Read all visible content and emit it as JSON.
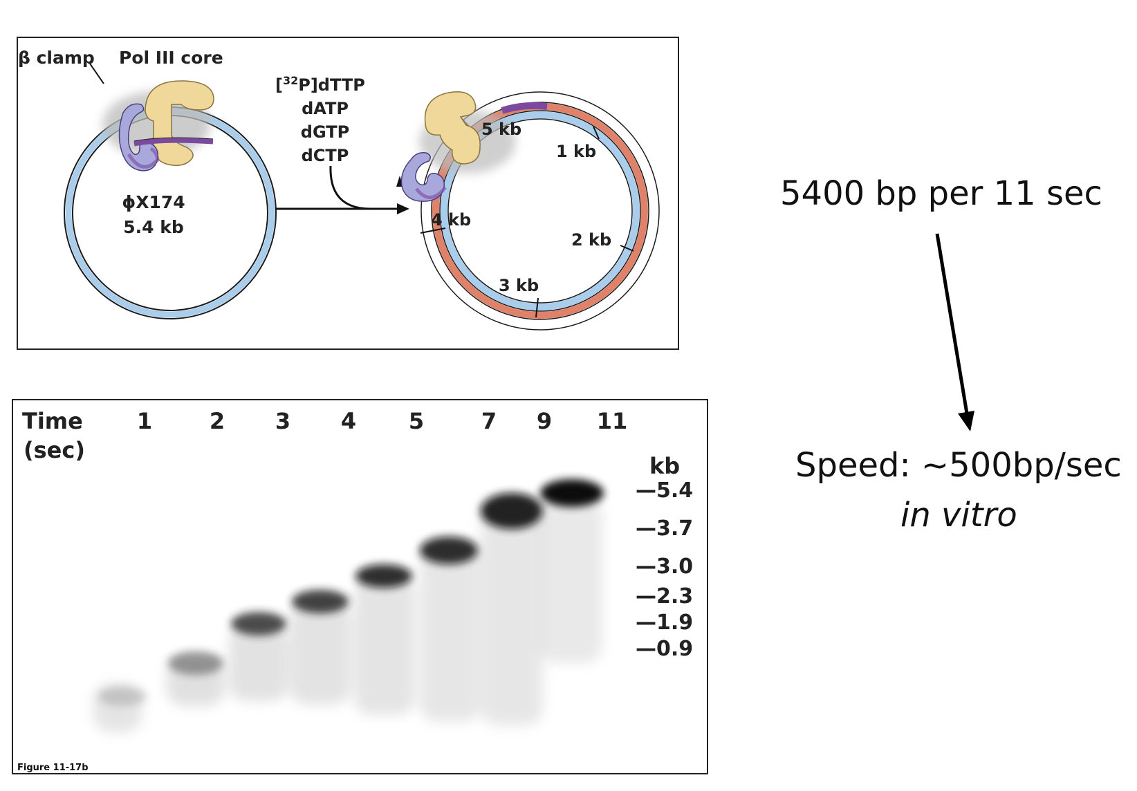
{
  "diagram": {
    "beta_clamp_label": "β clamp",
    "pol_label": "Pol III core",
    "phage_name": "ϕX174",
    "phage_size": "5.4 kb",
    "nucleotides": {
      "dttp_sup": "32",
      "dttp_rest": "P]dTTP",
      "datp": "dATP",
      "dgtp": "dGTP",
      "dctp": "dCTP"
    },
    "kb_marks": [
      "1 kb",
      "2 kb",
      "3 kb",
      "4 kb",
      "5 kb"
    ],
    "colors": {
      "template_strand": "#a9cdea",
      "new_strand": "#e0826a",
      "primer": "#7b4aa0",
      "clamp": "#a9a8dc",
      "pol_core": "#f0d79a"
    }
  },
  "gel": {
    "time_label": "Time",
    "time_unit": "(sec)",
    "lanes": [
      "1",
      "2",
      "3",
      "4",
      "5",
      "7",
      "9",
      "11"
    ],
    "kb_unit": "kb",
    "markers": [
      "—5.4",
      "—3.7",
      "—3.0",
      "—2.3",
      "—1.9",
      "—0.9"
    ],
    "figure_label": "Figure 11-17b"
  },
  "annotation": {
    "rate": "5400 bp per 11 sec",
    "speed": "Speed: ~500bp/sec",
    "condition": "in vitro"
  }
}
